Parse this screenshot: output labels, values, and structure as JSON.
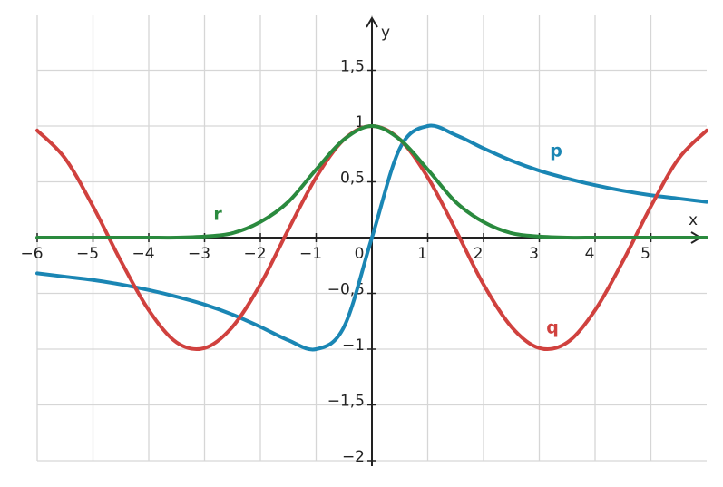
{
  "chart_data": {
    "type": "line",
    "x": [
      -6,
      -5.5,
      -5,
      -4.5,
      -4,
      -3.5,
      -3,
      -2.5,
      -2,
      -1.5,
      -1,
      -0.5,
      0,
      0.5,
      1,
      1.5,
      2,
      2.5,
      3,
      3.5,
      4,
      4.5,
      5,
      5.5,
      6
    ],
    "series": [
      {
        "name": "p",
        "color": "#1a86b4",
        "values": [
          -0.32,
          -0.35,
          -0.38,
          -0.42,
          -0.47,
          -0.53,
          -0.6,
          -0.69,
          -0.8,
          -0.92,
          -1,
          -0.8,
          0,
          0.8,
          1,
          0.92,
          0.8,
          0.69,
          0.6,
          0.53,
          0.47,
          0.42,
          0.38,
          0.35,
          0.32
        ]
      },
      {
        "name": "q",
        "color": "#d0413e",
        "values": [
          0.96,
          0.71,
          0.28,
          -0.21,
          -0.65,
          -0.94,
          -0.99,
          -0.8,
          -0.42,
          0.07,
          0.54,
          0.88,
          1,
          0.88,
          0.54,
          0.07,
          -0.42,
          -0.8,
          -0.99,
          -0.94,
          -0.65,
          -0.21,
          0.28,
          0.71,
          0.96
        ]
      },
      {
        "name": "r",
        "color": "#2a8a3e",
        "values": [
          0,
          0,
          0,
          0,
          0,
          0,
          0.01,
          0.04,
          0.14,
          0.32,
          0.61,
          0.88,
          1,
          0.88,
          0.61,
          0.32,
          0.14,
          0.04,
          0.01,
          0,
          0,
          0,
          0,
          0,
          0
        ]
      }
    ],
    "x_label": "x",
    "y_label": "y",
    "xlim": [
      -6,
      6
    ],
    "ylim": [
      -2,
      2
    ],
    "xticks": [
      {
        "value": -6,
        "label": "−6"
      },
      {
        "value": -5,
        "label": "−5"
      },
      {
        "value": -4,
        "label": "−4"
      },
      {
        "value": -3,
        "label": "−3"
      },
      {
        "value": -2,
        "label": "−2"
      },
      {
        "value": -1,
        "label": "−1"
      },
      0,
      1,
      2,
      3,
      4,
      5
    ],
    "yticks": [
      {
        "value": -2,
        "label": "−2"
      },
      {
        "value": -1.5,
        "label": "−1,5"
      },
      {
        "value": -1,
        "label": "−1"
      },
      {
        "value": -0.5,
        "label": "−0,5"
      },
      {
        "value": 0.5,
        "label": "0,5"
      },
      {
        "value": 1,
        "label": "1"
      },
      {
        "value": 1.5,
        "label": "1,5"
      }
    ],
    "grid": true
  }
}
